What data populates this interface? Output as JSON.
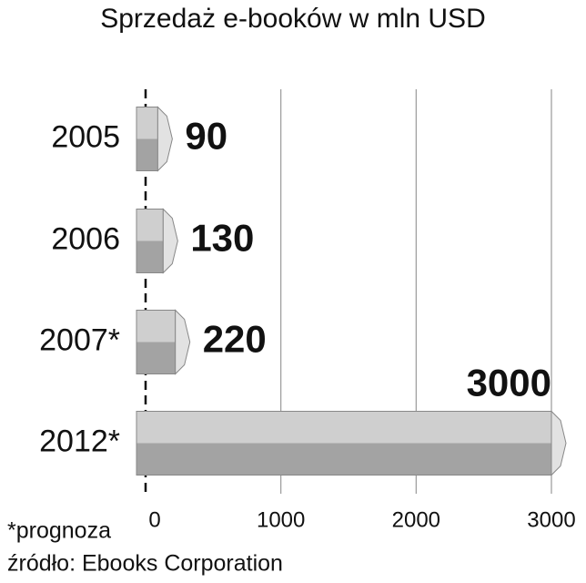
{
  "chart_data": {
    "type": "bar",
    "orientation": "horizontal",
    "title": "Sprzedaż e-booków w mln USD",
    "categories": [
      "2005",
      "2006",
      "2007*",
      "2012*"
    ],
    "values": [
      90,
      130,
      220,
      3000
    ],
    "color": "#b4b4b4",
    "xlim": [
      0,
      3000
    ],
    "xticks": [
      0,
      1000,
      2000,
      3000
    ],
    "grid": true,
    "notes": [
      "*prognoza",
      "źródło: Ebooks Corporation"
    ]
  }
}
